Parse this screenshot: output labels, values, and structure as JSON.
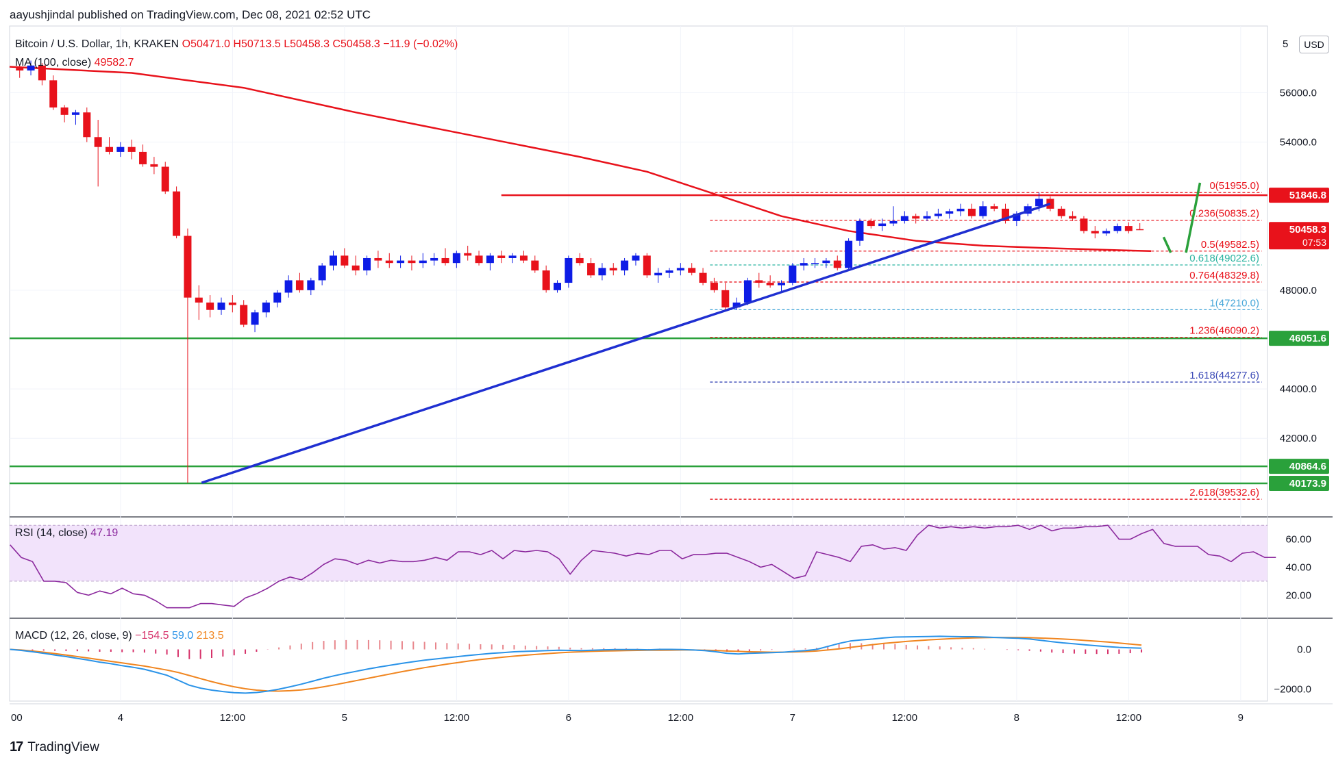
{
  "header": {
    "publisher": "aayushjindal published on TradingView.com, Dec 08, 2021 02:52 UTC",
    "symbol_line": {
      "name": "Bitcoin / U.S. Dollar, 1h, KRAKEN",
      "open": "O50471.0",
      "high": "H50713.5",
      "low": "L50458.3",
      "close": "C50458.3",
      "change": "−11.9 (−0.02%)"
    },
    "ma_label": "MA (100, close)",
    "ma_value": "49582.7"
  },
  "currency_button": "USD",
  "axis_top_cut_label": "5",
  "footer": {
    "logo_mark": "17",
    "brand": "TradingView"
  },
  "colors": {
    "up": "#0d1ce6",
    "down": "#e8121b",
    "ma": "#e8121b",
    "trendline": "#1f2fd1",
    "support": "#2aa13b",
    "rsi_band": "#f2e3fb",
    "rsi_line": "#8c2a9e",
    "macd_line": "#2a93e8",
    "signal_line": "#f0851f",
    "fib_red": "#e8121b",
    "fib_teal": "#2bb3a0",
    "fib_blue": "#3a49b6",
    "fib_sky": "#48a7d9"
  },
  "chart_data": [
    {
      "type": "candlestick",
      "title": "Bitcoin / U.S. Dollar, 1h, KRAKEN",
      "price_axis": {
        "ylim": [
          38900,
          58700
        ],
        "ticks": [
          {
            "value": 56000,
            "label": "56000.0"
          },
          {
            "value": 54000,
            "label": "54000.0"
          },
          {
            "value": 48000,
            "label": "48000.0"
          },
          {
            "value": 44000,
            "label": "44000.0"
          },
          {
            "value": 42000,
            "label": "42000.0"
          }
        ]
      },
      "time_axis": {
        "ticks": [
          {
            "bar": -1,
            "label": "00"
          },
          {
            "bar": 9,
            "label": "4"
          },
          {
            "bar": 19,
            "label": "12:00"
          },
          {
            "bar": 29,
            "label": "5"
          },
          {
            "bar": 39,
            "label": "12:00"
          },
          {
            "bar": 49,
            "label": "6"
          },
          {
            "bar": 59,
            "label": "12:00"
          },
          {
            "bar": 69,
            "label": "7"
          },
          {
            "bar": 79,
            "label": "12:00"
          },
          {
            "bar": 89,
            "label": "8"
          },
          {
            "bar": 99,
            "label": "12:00"
          },
          {
            "bar": 109,
            "label": "9"
          }
        ]
      },
      "bar_count_visible": 112,
      "candles": [
        [
          57000,
          57100,
          56600,
          56900
        ],
        [
          56900,
          57300,
          56700,
          57100
        ],
        [
          57100,
          57200,
          56300,
          56500
        ],
        [
          56500,
          56700,
          55300,
          55400
        ],
        [
          55400,
          55500,
          54800,
          55100
        ],
        [
          55100,
          55300,
          54700,
          55200
        ],
        [
          55200,
          55400,
          54000,
          54200
        ],
        [
          54200,
          54900,
          52200,
          53800
        ],
        [
          53800,
          54200,
          53500,
          53600
        ],
        [
          53600,
          54000,
          53400,
          53800
        ],
        [
          53800,
          54100,
          53300,
          53600
        ],
        [
          53600,
          53900,
          53000,
          53100
        ],
        [
          53100,
          53400,
          52700,
          53000
        ],
        [
          53000,
          53200,
          51900,
          52000
        ],
        [
          52000,
          52200,
          50100,
          50200
        ],
        [
          50200,
          50500,
          40200,
          47700
        ],
        [
          47700,
          48200,
          46800,
          47500
        ],
        [
          47500,
          47800,
          46900,
          47200
        ],
        [
          47200,
          47700,
          47000,
          47500
        ],
        [
          47500,
          47800,
          47100,
          47400
        ],
        [
          47400,
          47600,
          46500,
          46600
        ],
        [
          46600,
          47200,
          46300,
          47100
        ],
        [
          47100,
          47600,
          46900,
          47500
        ],
        [
          47500,
          48000,
          47300,
          47900
        ],
        [
          47900,
          48600,
          47700,
          48400
        ],
        [
          48400,
          48700,
          47900,
          48000
        ],
        [
          48000,
          48500,
          47800,
          48400
        ],
        [
          48400,
          49100,
          48200,
          49000
        ],
        [
          49000,
          49600,
          48800,
          49400
        ],
        [
          49400,
          49700,
          48900,
          49000
        ],
        [
          49000,
          49400,
          48600,
          48800
        ],
        [
          48800,
          49400,
          48600,
          49300
        ],
        [
          49300,
          49600,
          48900,
          49200
        ],
        [
          49200,
          49500,
          48900,
          49100
        ],
        [
          49100,
          49400,
          48900,
          49200
        ],
        [
          49200,
          49400,
          48800,
          49100
        ],
        [
          49100,
          49500,
          48900,
          49200
        ],
        [
          49200,
          49500,
          49000,
          49300
        ],
        [
          49300,
          49700,
          49000,
          49100
        ],
        [
          49100,
          49600,
          48900,
          49500
        ],
        [
          49500,
          49800,
          49200,
          49400
        ],
        [
          49400,
          49600,
          49000,
          49100
        ],
        [
          49100,
          49500,
          48800,
          49400
        ],
        [
          49400,
          49600,
          49100,
          49300
        ],
        [
          49300,
          49500,
          49100,
          49400
        ],
        [
          49400,
          49600,
          49100,
          49200
        ],
        [
          49200,
          49400,
          48700,
          48800
        ],
        [
          48800,
          49000,
          47900,
          48000
        ],
        [
          48000,
          48400,
          47900,
          48300
        ],
        [
          48300,
          49400,
          48100,
          49300
        ],
        [
          49300,
          49500,
          49000,
          49100
        ],
        [
          49100,
          49300,
          48500,
          48600
        ],
        [
          48600,
          49100,
          48400,
          48900
        ],
        [
          48900,
          49100,
          48600,
          48800
        ],
        [
          48800,
          49300,
          48600,
          49200
        ],
        [
          49200,
          49500,
          49000,
          49400
        ],
        [
          49400,
          49500,
          48500,
          48600
        ],
        [
          48600,
          48900,
          48300,
          48700
        ],
        [
          48700,
          48900,
          48500,
          48800
        ],
        [
          48800,
          49100,
          48600,
          48900
        ],
        [
          48900,
          49100,
          48600,
          48700
        ],
        [
          48700,
          48900,
          48200,
          48300
        ],
        [
          48300,
          48500,
          47900,
          48000
        ],
        [
          48000,
          48300,
          47200,
          47300
        ],
        [
          47300,
          47700,
          47200,
          47500
        ],
        [
          47500,
          48500,
          47400,
          48400
        ],
        [
          48400,
          48700,
          48100,
          48300
        ],
        [
          48300,
          48600,
          48100,
          48200
        ],
        [
          48200,
          48400,
          47900,
          48300
        ],
        [
          48300,
          49100,
          48200,
          49000
        ],
        [
          49000,
          49300,
          48800,
          49100
        ],
        [
          49100,
          49300,
          48900,
          49100
        ],
        [
          49100,
          49300,
          48900,
          49200
        ],
        [
          49200,
          49400,
          48800,
          48900
        ],
        [
          48900,
          50100,
          48800,
          50000
        ],
        [
          50000,
          50900,
          49800,
          50800
        ],
        [
          50800,
          50900,
          50500,
          50600
        ],
        [
          50600,
          50900,
          50400,
          50700
        ],
        [
          50700,
          51400,
          50600,
          50800
        ],
        [
          50800,
          51200,
          50700,
          51000
        ],
        [
          51000,
          51100,
          50700,
          50900
        ],
        [
          50900,
          51200,
          50800,
          51000
        ],
        [
          51000,
          51300,
          50900,
          51100
        ],
        [
          51100,
          51300,
          50900,
          51200
        ],
        [
          51200,
          51500,
          51000,
          51300
        ],
        [
          51300,
          51500,
          50900,
          51000
        ],
        [
          51000,
          51600,
          50900,
          51400
        ],
        [
          51400,
          51500,
          51200,
          51300
        ],
        [
          51300,
          51500,
          50700,
          50800
        ],
        [
          50800,
          51200,
          50600,
          51100
        ],
        [
          51100,
          51500,
          51000,
          51400
        ],
        [
          51400,
          51955,
          51200,
          51700
        ],
        [
          51700,
          51800,
          51200,
          51300
        ],
        [
          51300,
          51400,
          50900,
          51000
        ],
        [
          51000,
          51200,
          50800,
          50900
        ],
        [
          50900,
          51000,
          50300,
          50400
        ],
        [
          50400,
          50600,
          50100,
          50300
        ],
        [
          50300,
          50500,
          50200,
          50400
        ],
        [
          50400,
          50700,
          50300,
          50600
        ],
        [
          50600,
          50750,
          50300,
          50400
        ],
        [
          50471,
          50713.5,
          50458.3,
          50458.3
        ]
      ],
      "ma100": [
        [
          -1,
          57050
        ],
        [
          10,
          56800
        ],
        [
          20,
          56200
        ],
        [
          30,
          55200
        ],
        [
          40,
          54300
        ],
        [
          50,
          53400
        ],
        [
          56,
          52800
        ],
        [
          62,
          51900
        ],
        [
          68,
          51000
        ],
        [
          74,
          50400
        ],
        [
          80,
          50000
        ],
        [
          86,
          49800
        ],
        [
          92,
          49700
        ],
        [
          101,
          49582.7
        ]
      ],
      "trendline": {
        "from": [
          16,
          40200
        ],
        "to": [
          92,
          51500
        ]
      },
      "resistance": {
        "from_bar": 43,
        "value": 51846.8
      },
      "support_lines": [
        46051.6,
        40864.6,
        40173.9
      ],
      "fibonacci": {
        "from_bar": 62,
        "levels": [
          {
            "ratio": "0",
            "value": 51955.0,
            "color_key": "fib_red"
          },
          {
            "ratio": "0.236",
            "value": 50835.2,
            "color_key": "fib_red"
          },
          {
            "ratio": "0.5",
            "value": 49582.5,
            "color_key": "fib_red"
          },
          {
            "ratio": "0.618",
            "value": 49022.6,
            "color_key": "fib_teal"
          },
          {
            "ratio": "0.764",
            "value": 48329.8,
            "color_key": "fib_red"
          },
          {
            "ratio": "1",
            "value": 47210.0,
            "color_key": "fib_sky"
          },
          {
            "ratio": "1.236",
            "value": 46090.2,
            "color_key": "fib_red"
          },
          {
            "ratio": "1.618",
            "value": 44277.6,
            "color_key": "fib_blue"
          },
          {
            "ratio": "2.618",
            "value": 39532.6,
            "color_key": "fib_red"
          }
        ]
      },
      "projection": [
        [
          102,
          50150
        ],
        [
          103,
          49520
        ],
        [
          104,
          49520
        ],
        [
          105,
          52350
        ]
      ],
      "price_badges": [
        {
          "label": "51846.8",
          "value": 51846.8,
          "bg": "#e8121b"
        },
        {
          "label": "50458.3",
          "sub": "07:53",
          "value": 50458.3,
          "bg": "#e8121b"
        },
        {
          "label": "46051.6",
          "value": 46051.6,
          "bg": "#2aa13b"
        },
        {
          "label": "40864.6",
          "value": 40864.6,
          "bg": "#2aa13b"
        },
        {
          "label": "40173.9",
          "value": 40173.9,
          "bg": "#2aa13b"
        }
      ]
    },
    {
      "type": "line",
      "title": "RSI (14, close)",
      "value_label": "47.19",
      "ylim": [
        5,
        75
      ],
      "band": [
        30,
        70
      ],
      "ticks": [
        {
          "value": 60,
          "label": "60.00"
        },
        {
          "value": 40,
          "label": "40.00"
        },
        {
          "value": 20,
          "label": "20.00"
        }
      ],
      "values": [
        56,
        47,
        44,
        30,
        30,
        29,
        22,
        20,
        23,
        21,
        25,
        21,
        20,
        16,
        11,
        11,
        11,
        14,
        14,
        13,
        12,
        18,
        21,
        25,
        30,
        33,
        31,
        36,
        42,
        46,
        45,
        42,
        45,
        43,
        45,
        44,
        44,
        45,
        47,
        45,
        51,
        51,
        49,
        52,
        46,
        52,
        51,
        52,
        51,
        46,
        35,
        45,
        52,
        51,
        50,
        48,
        50,
        49,
        52,
        52,
        46,
        49,
        49,
        50,
        50,
        47,
        44,
        40,
        42,
        37,
        32,
        34,
        51,
        49,
        47,
        44,
        55,
        56,
        53,
        54,
        52,
        63,
        70,
        68,
        69,
        68,
        69,
        68,
        69,
        69,
        70,
        67,
        70,
        66,
        68,
        68,
        69,
        69,
        70,
        60,
        60,
        64,
        67,
        57,
        55,
        55,
        55,
        49,
        48,
        44,
        50,
        51,
        47,
        47
      ]
    },
    {
      "type": "line",
      "title": "MACD (12, 26, close, 9)",
      "values_label": {
        "hist": "−154.5",
        "macd": "59.0",
        "signal": "213.5"
      },
      "ylim": [
        -2600,
        1500
      ],
      "ticks": [
        {
          "value": 0,
          "label": "0.0"
        },
        {
          "value": -2000,
          "label": "−2000.0"
        }
      ],
      "macd": [
        0,
        -50,
        -120,
        -200,
        -280,
        -360,
        -450,
        -540,
        -640,
        -720,
        -820,
        -900,
        -1000,
        -1150,
        -1300,
        -1550,
        -1800,
        -1950,
        -2050,
        -2120,
        -2180,
        -2200,
        -2170,
        -2100,
        -2000,
        -1880,
        -1750,
        -1600,
        -1450,
        -1320,
        -1200,
        -1090,
        -980,
        -880,
        -790,
        -700,
        -620,
        -540,
        -480,
        -420,
        -360,
        -300,
        -250,
        -200,
        -160,
        -120,
        -100,
        -80,
        -60,
        -40,
        -50,
        -60,
        -40,
        -20,
        -10,
        -5,
        -10,
        -20,
        0,
        0,
        -10,
        -30,
        -60,
        -120,
        -200,
        -230,
        -200,
        -180,
        -160,
        -140,
        -100,
        -60,
        0,
        150,
        300,
        420,
        480,
        520,
        580,
        620,
        630,
        640,
        650,
        660,
        650,
        640,
        640,
        620,
        600,
        580,
        560,
        520,
        460,
        390,
        330,
        280,
        230,
        180,
        140,
        100,
        80,
        59
      ],
      "signal": [
        0,
        -30,
        -80,
        -140,
        -210,
        -280,
        -360,
        -440,
        -520,
        -600,
        -680,
        -760,
        -840,
        -940,
        -1040,
        -1160,
        -1310,
        -1470,
        -1620,
        -1760,
        -1880,
        -1980,
        -2050,
        -2090,
        -2100,
        -2080,
        -2040,
        -1970,
        -1880,
        -1780,
        -1670,
        -1560,
        -1450,
        -1340,
        -1230,
        -1120,
        -1020,
        -920,
        -830,
        -740,
        -660,
        -580,
        -510,
        -450,
        -390,
        -340,
        -290,
        -250,
        -210,
        -170,
        -140,
        -120,
        -100,
        -80,
        -70,
        -60,
        -50,
        -40,
        -40,
        -35,
        -30,
        -30,
        -40,
        -55,
        -80,
        -100,
        -120,
        -130,
        -140,
        -140,
        -130,
        -110,
        -80,
        -30,
        30,
        100,
        170,
        240,
        300,
        350,
        400,
        440,
        480,
        510,
        540,
        560,
        575,
        590,
        600,
        600,
        600,
        590,
        570,
        550,
        520,
        490,
        450,
        410,
        370,
        320,
        270,
        213.5
      ]
    }
  ]
}
